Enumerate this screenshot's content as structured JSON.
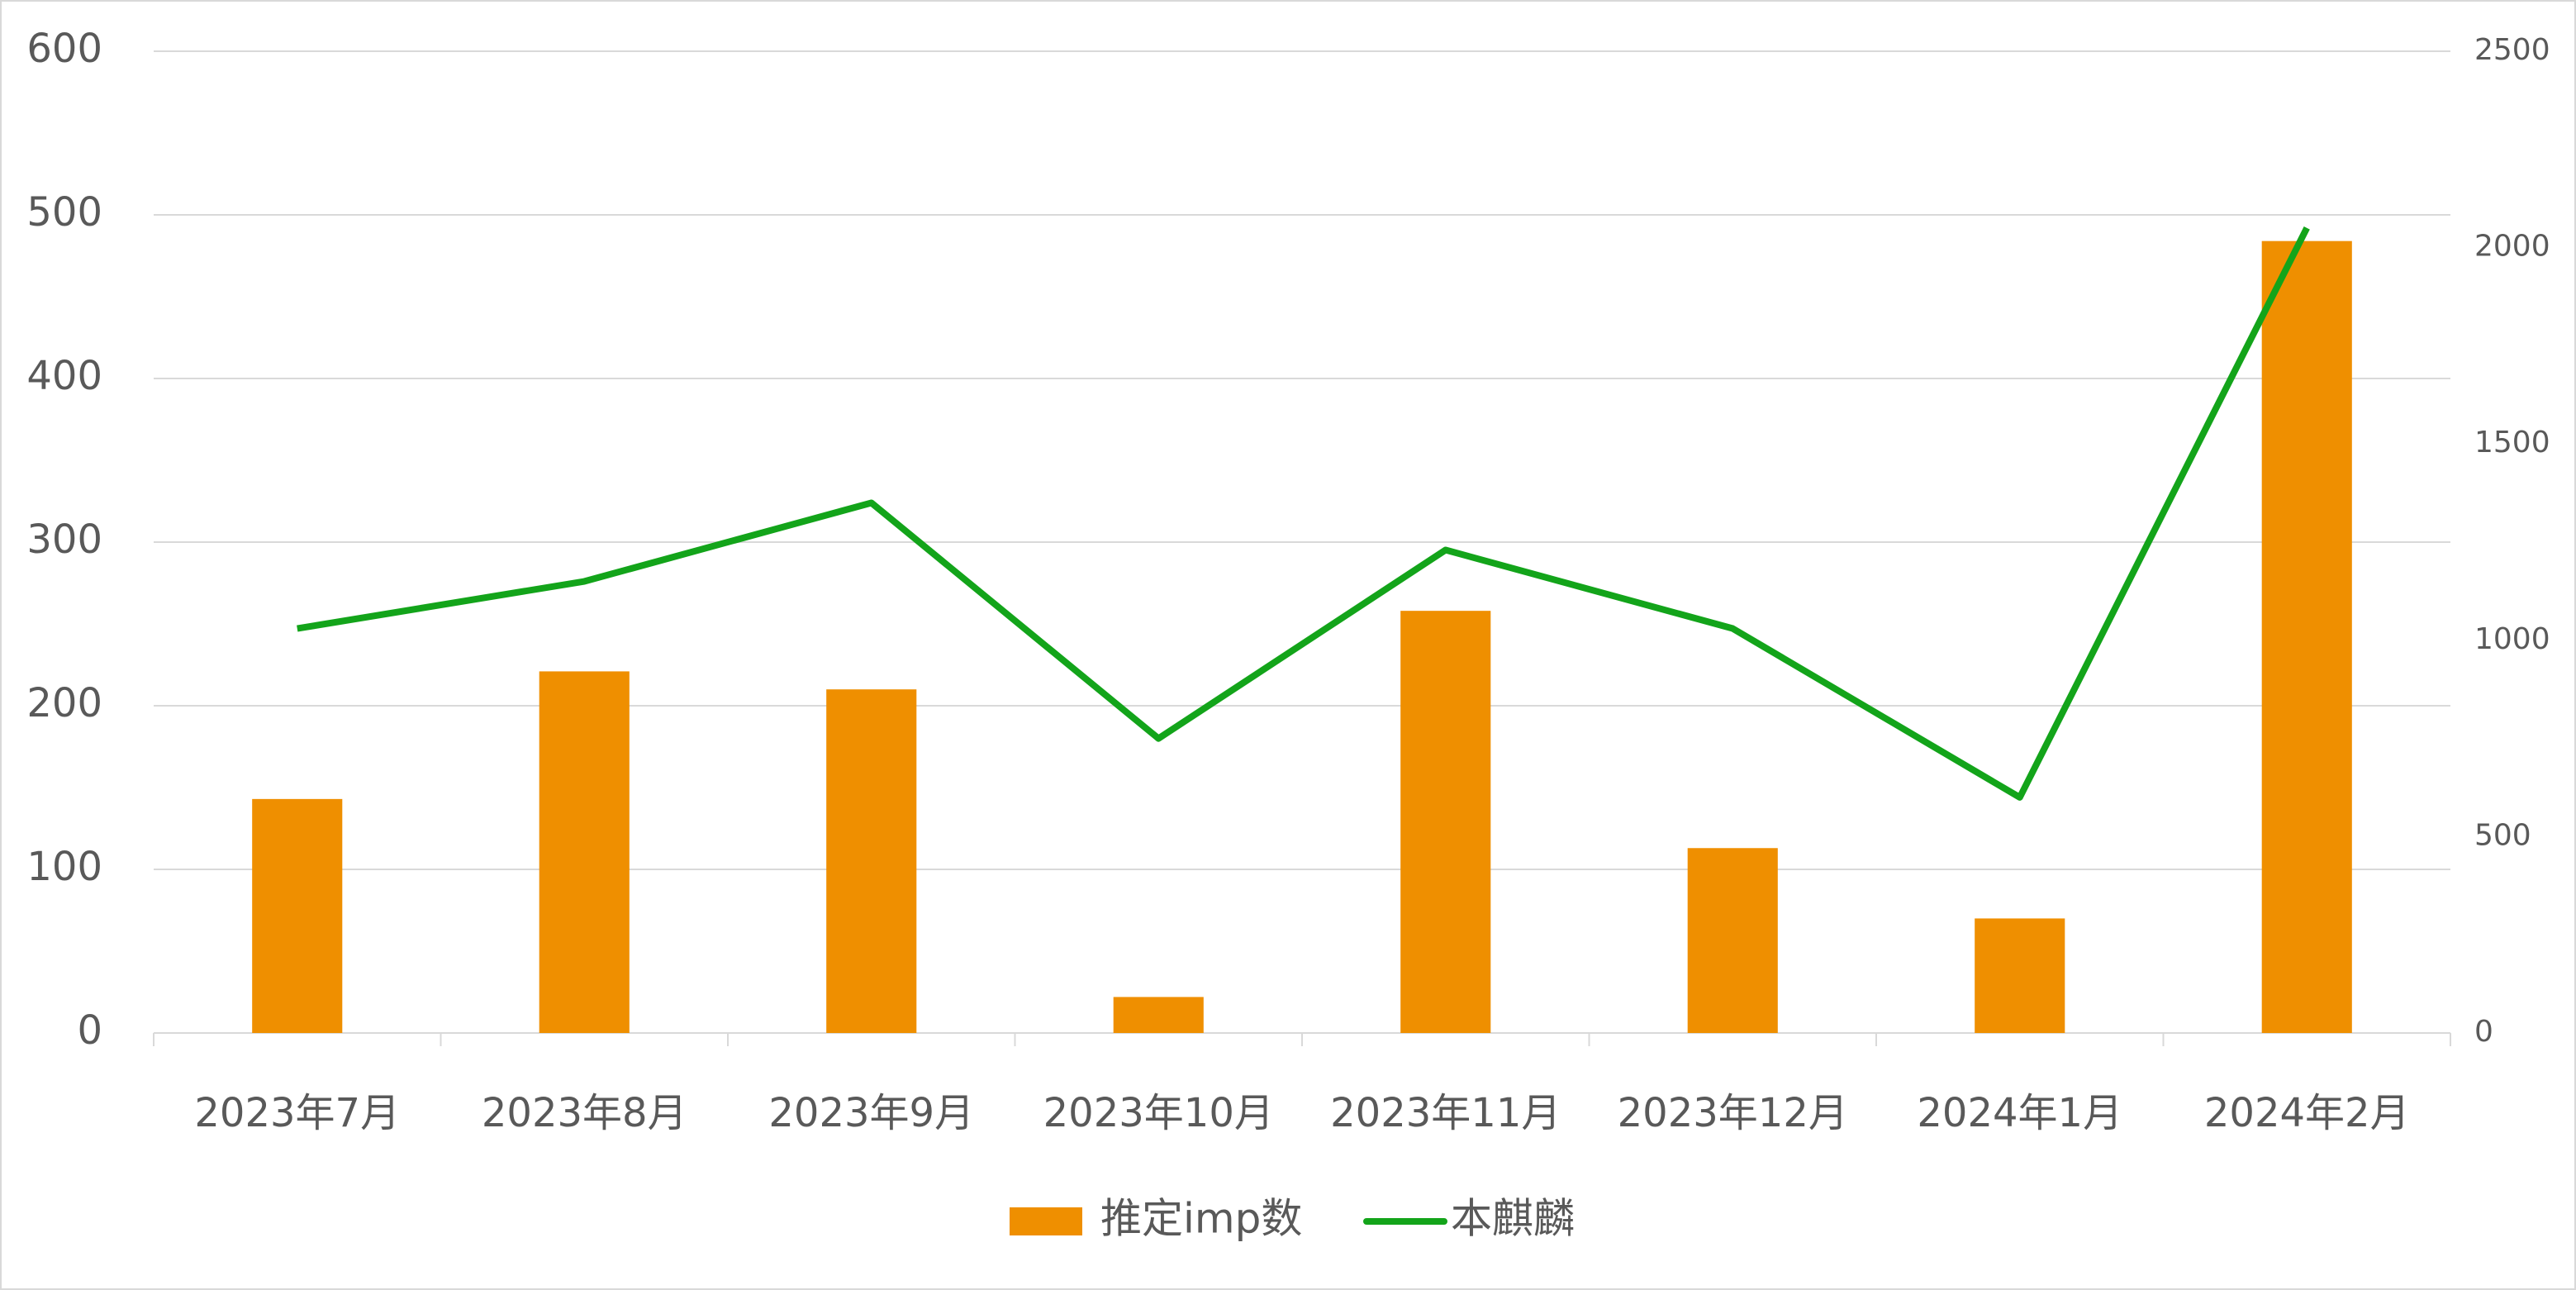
{
  "chart_data": {
    "type": "bar",
    "categories": [
      "2023年7月",
      "2023年8月",
      "2023年9月",
      "2023年10月",
      "2023年11月",
      "2023年12月",
      "2024年1月",
      "2024年2月"
    ],
    "series": [
      {
        "name": "推定imp数",
        "type": "bar",
        "color": "#ef8f00",
        "values": [
          143,
          221,
          210,
          22,
          258,
          113,
          70,
          484
        ]
      },
      {
        "name": "本麒麟",
        "type": "line",
        "axis": "y2",
        "color": "#13a41a",
        "values": [
          1030,
          1150,
          1350,
          750,
          1230,
          1030,
          600,
          2050
        ]
      }
    ],
    "ylim": [
      0,
      600
    ],
    "yticks": [
      0,
      100,
      200,
      300,
      400,
      500,
      600
    ],
    "y2lim": [
      0,
      2500
    ],
    "y2ticks": [
      0,
      500,
      1000,
      1500,
      2000,
      2500
    ],
    "grid": true,
    "legend": "bottom"
  }
}
